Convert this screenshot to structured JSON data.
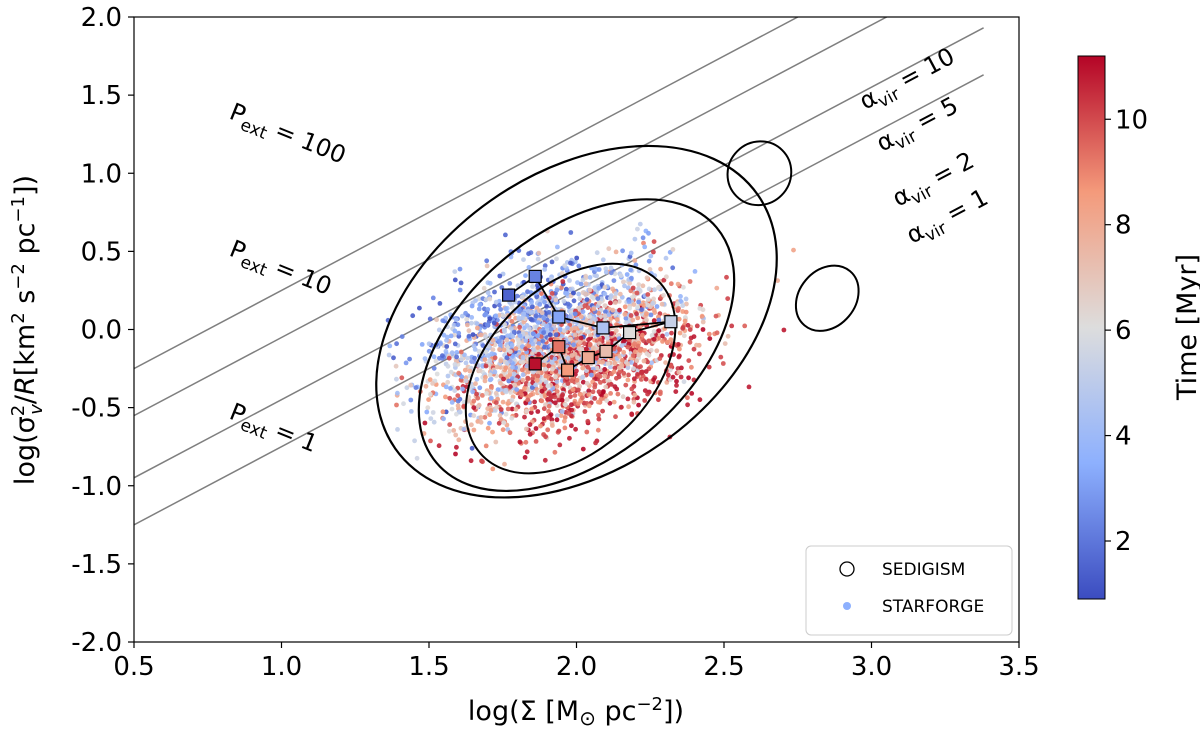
{
  "chart_data": {
    "type": "scatter",
    "xlabel": "log(Σ [M⊙ pc⁻²])",
    "ylabel": "log(σᵥ²/R[km² s⁻² pc⁻¹])",
    "xlim": [
      0.5,
      3.5
    ],
    "ylim": [
      -2.0,
      2.0
    ],
    "x_ticks": [
      "0.5",
      "1.0",
      "1.5",
      "2.0",
      "2.5",
      "3.0",
      "3.5"
    ],
    "y_ticks": [
      "2.0",
      "1.5",
      "1.0",
      "0.5",
      "0.0",
      "-0.5",
      "-1.0",
      "-1.5",
      "-2.0"
    ],
    "grid": false,
    "colorbar": {
      "label": "Time [Myr]",
      "range": [
        0.9,
        11.2
      ],
      "ticks": [
        "2",
        "4",
        "6",
        "8",
        "10"
      ],
      "colormap": "coolwarm",
      "low_color": "#3b4cc0",
      "mid_color": "#dddddd",
      "high_color": "#b40426"
    },
    "virial_lines": [
      {
        "label": "α_vir = 10",
        "alpha": 10
      },
      {
        "label": "α_vir = 5",
        "alpha": 5
      },
      {
        "label": "α_vir = 2",
        "alpha": 2
      },
      {
        "label": "α_vir = 1",
        "alpha": 1
      }
    ],
    "pressure_curves": [
      {
        "label": "P_ext = 100",
        "p": 100
      },
      {
        "label": "P_ext = 10",
        "p": 10
      },
      {
        "label": "P_ext = 1",
        "p": 1
      }
    ],
    "track_early": {
      "x": [
        1.77,
        1.86,
        1.94,
        2.09,
        2.32
      ],
      "y": [
        0.22,
        0.34,
        0.08,
        0.01,
        0.05
      ],
      "time": [
        1.5,
        2.3,
        3.2,
        4.5,
        5.3
      ]
    },
    "track_late": {
      "x": [
        2.18,
        2.1,
        2.04,
        1.97,
        1.94,
        1.86
      ],
      "y": [
        -0.02,
        -0.14,
        -0.18,
        -0.26,
        -0.11,
        -0.22
      ],
      "time": [
        6.1,
        7.3,
        8.0,
        8.6,
        9.3,
        11.0
      ]
    },
    "scatter_description": "STARFORGE point cloud; early times (blue) centered near x≈1.85, y≈0.1; late times (red) centered near x≈2.0, y≈-0.3",
    "legend": {
      "position": "lower right",
      "entries": [
        {
          "label": "SEDIGISM",
          "marker": "open-circle"
        },
        {
          "label": "STARFORGE",
          "marker": "filled-dot"
        }
      ]
    }
  }
}
